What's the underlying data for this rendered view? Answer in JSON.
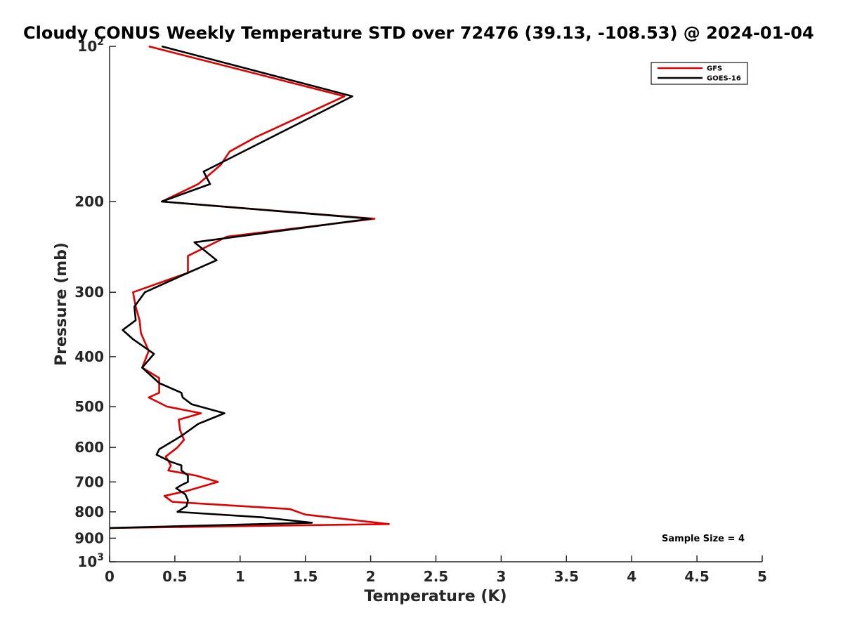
{
  "chart_data": {
    "type": "line",
    "title": "Cloudy CONUS Weekly Temperature STD over 72476 (39.13, -108.53) @ 2024-01-04",
    "xlabel": "Temperature (K)",
    "ylabel": "Pressure (mb)",
    "xlim": [
      0,
      5
    ],
    "ylim": [
      100,
      1000
    ],
    "y_scale": "log",
    "y_reversed": true,
    "x_ticks": [
      "0",
      "0.5",
      "1",
      "1.5",
      "2",
      "2.5",
      "3",
      "3.5",
      "4",
      "4.5",
      "5"
    ],
    "x_tick_values": [
      0,
      0.5,
      1,
      1.5,
      2,
      2.5,
      3,
      3.5,
      4,
      4.5,
      5
    ],
    "y_tick_values": [
      100,
      200,
      300,
      400,
      500,
      600,
      700,
      800,
      900,
      1000
    ],
    "y_tick_labels": [
      {
        "base": "10",
        "exp": "2"
      },
      {
        "base": "200",
        "exp": ""
      },
      {
        "base": "300",
        "exp": ""
      },
      {
        "base": "400",
        "exp": ""
      },
      {
        "base": "500",
        "exp": ""
      },
      {
        "base": "600",
        "exp": ""
      },
      {
        "base": "700",
        "exp": ""
      },
      {
        "base": "800",
        "exp": ""
      },
      {
        "base": "900",
        "exp": ""
      },
      {
        "base": "10",
        "exp": "3"
      }
    ],
    "grid": false,
    "legend_position": "top-right",
    "annotation": "Sample Size = 4",
    "series": [
      {
        "name": "GFS",
        "color": "#e00000",
        "points": [
          [
            0.3,
            100
          ],
          [
            1.8,
            125
          ],
          [
            1.12,
            150
          ],
          [
            0.92,
            160
          ],
          [
            0.85,
            170
          ],
          [
            0.68,
            185
          ],
          [
            0.4,
            200
          ],
          [
            2.03,
            216
          ],
          [
            0.9,
            234
          ],
          [
            0.6,
            255
          ],
          [
            0.6,
            275
          ],
          [
            0.18,
            300
          ],
          [
            0.2,
            320
          ],
          [
            0.23,
            340
          ],
          [
            0.24,
            360
          ],
          [
            0.3,
            390
          ],
          [
            0.25,
            420
          ],
          [
            0.38,
            440
          ],
          [
            0.38,
            470
          ],
          [
            0.3,
            480
          ],
          [
            0.44,
            500
          ],
          [
            0.7,
            515
          ],
          [
            0.53,
            530
          ],
          [
            0.54,
            555
          ],
          [
            0.57,
            580
          ],
          [
            0.52,
            600
          ],
          [
            0.43,
            625
          ],
          [
            0.47,
            650
          ],
          [
            0.45,
            665
          ],
          [
            0.66,
            680
          ],
          [
            0.83,
            700
          ],
          [
            0.58,
            730
          ],
          [
            0.42,
            745
          ],
          [
            0.48,
            765
          ],
          [
            1.38,
            790
          ],
          [
            1.5,
            810
          ],
          [
            2.14,
            845
          ],
          [
            0,
            860
          ]
        ]
      },
      {
        "name": "GOES-16",
        "color": "#000000",
        "points": [
          [
            0.4,
            100
          ],
          [
            1.86,
            125
          ],
          [
            0.72,
            175
          ],
          [
            0.77,
            185
          ],
          [
            0.4,
            200
          ],
          [
            2.0,
            216
          ],
          [
            0.65,
            240
          ],
          [
            0.82,
            260
          ],
          [
            0.6,
            275
          ],
          [
            0.27,
            300
          ],
          [
            0.19,
            320
          ],
          [
            0.2,
            340
          ],
          [
            0.1,
            355
          ],
          [
            0.18,
            370
          ],
          [
            0.34,
            395
          ],
          [
            0.25,
            420
          ],
          [
            0.38,
            450
          ],
          [
            0.55,
            470
          ],
          [
            0.56,
            480
          ],
          [
            0.63,
            495
          ],
          [
            0.88,
            515
          ],
          [
            0.68,
            540
          ],
          [
            0.55,
            570
          ],
          [
            0.38,
            605
          ],
          [
            0.36,
            620
          ],
          [
            0.47,
            640
          ],
          [
            0.55,
            650
          ],
          [
            0.55,
            665
          ],
          [
            0.6,
            680
          ],
          [
            0.6,
            700
          ],
          [
            0.55,
            710
          ],
          [
            0.51,
            720
          ],
          [
            0.58,
            740
          ],
          [
            0.6,
            760
          ],
          [
            0.59,
            780
          ],
          [
            0.52,
            800
          ],
          [
            1.17,
            820
          ],
          [
            1.55,
            840
          ],
          [
            0,
            860
          ]
        ]
      }
    ]
  }
}
